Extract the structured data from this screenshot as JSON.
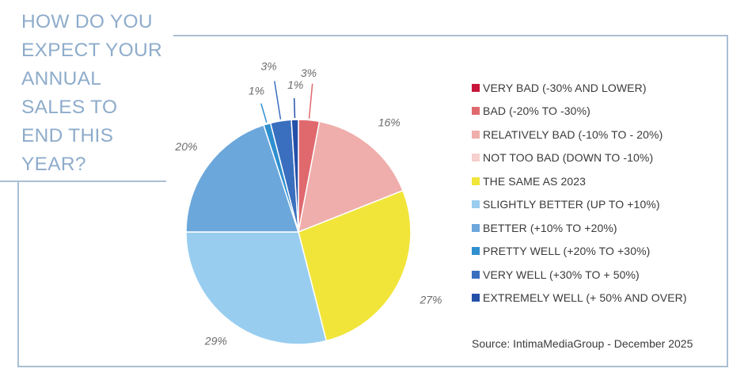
{
  "title_lines": [
    "HOW DO YOU",
    "EXPECT YOUR",
    "ANNUAL",
    "SALES TO",
    "END THIS",
    "YEAR?"
  ],
  "source": "Source: IntimaMediaGroup - December 2025",
  "chart_data": {
    "type": "pie",
    "title": "HOW DO YOU EXPECT YOUR ANNUAL SALES TO END THIS YEAR?",
    "categories": [
      "VERY BAD (-30% AND LOWER)",
      "BAD (-20% TO -30%)",
      "RELATIVELY BAD (-10% TO - 20%)",
      "NOT TOO BAD (DOWN TO -10%)",
      "THE SAME AS 2023",
      "SLIGHTLY BETTER (UP TO +10%)",
      "BETTER (+10% TO +20%)",
      "PRETTY WELL (+20% TO +30%)",
      "VERY WELL (+30% TO + 50%)",
      "EXTREMELY WELL (+ 50% AND OVER)"
    ],
    "values": [
      0,
      3,
      16,
      0,
      27,
      29,
      20,
      1,
      3,
      1
    ],
    "labels": [
      "",
      "3%",
      "16%",
      "",
      "27%",
      "29%",
      "20%",
      "1%",
      "3%",
      "1%"
    ],
    "colors": [
      "#c8163a",
      "#e0696e",
      "#efaeab",
      "#f5d0cc",
      "#f1e53a",
      "#98cdf0",
      "#6ba7db",
      "#2f8fcf",
      "#3a6fbf",
      "#2550a8"
    ],
    "legend_position": "right"
  }
}
